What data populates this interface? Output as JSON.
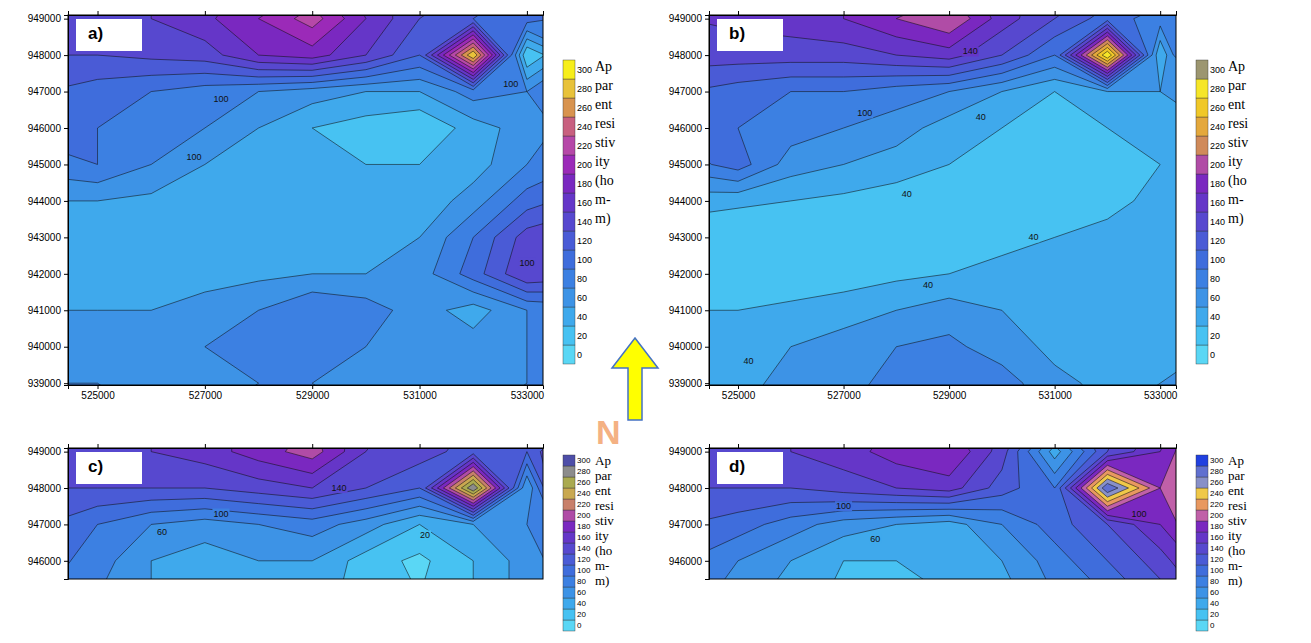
{
  "chart_data": [
    {
      "type": "contour",
      "label": "a)",
      "colorbar_title": "Apparent resistivity (hom-m)",
      "xlim": [
        524450,
        533300
      ],
      "ylim": [
        938950,
        949100
      ],
      "xticks": [
        525000,
        527000,
        529000,
        531000,
        533000
      ],
      "yticks": [
        939000,
        940000,
        941000,
        942000,
        943000,
        944000,
        945000,
        946000,
        947000,
        948000,
        949000
      ],
      "levels": [
        0,
        20,
        40,
        60,
        80,
        100,
        120,
        140,
        160,
        180,
        200,
        220,
        240,
        260,
        280,
        300
      ],
      "colors": [
        "#5ad7f5",
        "#47c2f2",
        "#3fa9ec",
        "#3d93e6",
        "#3c80e2",
        "#3f6ddc",
        "#4a5bd6",
        "#5748cf",
        "#6536c8",
        "#7a28c0",
        "#9b2ab8",
        "#b648a8",
        "#c8607f",
        "#d8934e",
        "#e8c23a",
        "#f7ee1a"
      ],
      "grid_x": [
        524000,
        525000,
        526000,
        527000,
        528000,
        529000,
        530000,
        531000,
        532000,
        533000,
        534000
      ],
      "grid_y": [
        950000,
        949000,
        948000,
        947000,
        946000,
        945000,
        944000,
        943000,
        942000,
        941000,
        940000,
        939000,
        938000
      ],
      "z": [
        [
          150,
          155,
          160,
          170,
          185,
          200,
          170,
          150,
          140,
          120,
          100
        ],
        [
          150,
          150,
          160,
          175,
          200,
          230,
          180,
          140,
          120,
          110,
          90
        ],
        [
          140,
          140,
          145,
          150,
          180,
          190,
          160,
          120,
          300,
          20,
          80
        ],
        [
          120,
          110,
          100,
          90,
          80,
          70,
          60,
          60,
          90,
          80,
          100
        ],
        [
          110,
          100,
          90,
          80,
          60,
          40,
          30,
          20,
          50,
          70,
          90
        ],
        [
          90,
          100,
          80,
          60,
          50,
          40,
          40,
          40,
          50,
          80,
          100
        ],
        [
          60,
          60,
          55,
          50,
          40,
          40,
          40,
          45,
          70,
          110,
          130
        ],
        [
          50,
          45,
          45,
          40,
          40,
          40,
          50,
          60,
          100,
          150,
          160
        ],
        [
          50,
          50,
          50,
          50,
          55,
          60,
          60,
          70,
          110,
          160,
          150
        ],
        [
          60,
          60,
          60,
          70,
          80,
          100,
          90,
          70,
          50,
          80,
          90
        ],
        [
          70,
          70,
          70,
          80,
          90,
          90,
          80,
          70,
          70,
          80,
          90
        ],
        [
          80,
          80,
          75,
          75,
          80,
          80,
          75,
          70,
          75,
          80,
          90
        ],
        [
          85,
          85,
          80,
          80,
          85,
          85,
          80,
          75,
          80,
          85,
          90
        ]
      ],
      "annotations": [
        {
          "label": "100",
          "x": 527300,
          "y": 946800
        },
        {
          "label": "100",
          "x": 526800,
          "y": 945200
        },
        {
          "label": "100",
          "x": 532700,
          "y": 947200
        },
        {
          "label": "100",
          "x": 533000,
          "y": 942300
        }
      ]
    },
    {
      "type": "contour",
      "label": "b)",
      "colorbar_title": "Apparent resistivity (hom-m)",
      "xlim": [
        524450,
        533300
      ],
      "ylim": [
        938950,
        949100
      ],
      "xticks": [
        525000,
        527000,
        529000,
        531000,
        533000
      ],
      "yticks": [
        939000,
        940000,
        941000,
        942000,
        943000,
        944000,
        945000,
        946000,
        947000,
        948000,
        949000
      ],
      "levels": [
        0,
        20,
        40,
        60,
        80,
        100,
        120,
        140,
        160,
        180,
        200,
        220,
        240,
        260,
        280,
        300
      ],
      "colors": [
        "#5ad7f5",
        "#47c2f2",
        "#3fa9ec",
        "#3d93e6",
        "#3c80e2",
        "#3f6ddc",
        "#4a5bd6",
        "#5748cf",
        "#6536c8",
        "#7a28c0",
        "#b04ca6",
        "#d08a5a",
        "#e4a83c",
        "#f0c828",
        "#f6e628",
        "#9c9670"
      ],
      "grid_x": [
        524000,
        525000,
        526000,
        527000,
        528000,
        529000,
        530000,
        531000,
        532000,
        533000,
        534000
      ],
      "grid_y": [
        950000,
        949000,
        948000,
        947000,
        946000,
        945000,
        944000,
        943000,
        942000,
        941000,
        940000,
        939000,
        938000
      ],
      "z": [
        [
          160,
          165,
          170,
          180,
          190,
          190,
          170,
          150,
          140,
          120,
          100
        ],
        [
          160,
          165,
          170,
          180,
          200,
          220,
          170,
          140,
          110,
          90,
          80
        ],
        [
          150,
          150,
          150,
          150,
          160,
          170,
          140,
          100,
          300,
          40,
          200
        ],
        [
          120,
          110,
          100,
          100,
          90,
          80,
          60,
          40,
          60,
          60,
          80
        ],
        [
          110,
          100,
          90,
          80,
          70,
          50,
          40,
          30,
          40,
          50,
          60
        ],
        [
          90,
          110,
          70,
          60,
          50,
          40,
          30,
          20,
          30,
          40,
          50
        ],
        [
          50,
          45,
          40,
          35,
          30,
          25,
          20,
          25,
          35,
          45,
          50
        ],
        [
          25,
          20,
          20,
          20,
          25,
          30,
          35,
          40,
          45,
          50,
          55
        ],
        [
          30,
          25,
          25,
          30,
          35,
          40,
          45,
          45,
          50,
          55,
          55
        ],
        [
          40,
          40,
          45,
          50,
          60,
          70,
          60,
          50,
          45,
          50,
          55
        ],
        [
          45,
          50,
          60,
          70,
          80,
          85,
          70,
          55,
          50,
          55,
          60
        ],
        [
          50,
          55,
          65,
          75,
          85,
          95,
          90,
          65,
          55,
          60,
          65
        ],
        [
          55,
          60,
          70,
          80,
          90,
          100,
          95,
          70,
          60,
          65,
          70
        ]
      ],
      "annotations": [
        {
          "label": "140",
          "x": 529400,
          "y": 948100
        },
        {
          "label": "100",
          "x": 527400,
          "y": 946400
        },
        {
          "label": "40",
          "x": 529600,
          "y": 946300
        },
        {
          "label": "40",
          "x": 528200,
          "y": 944200
        },
        {
          "label": "40",
          "x": 530600,
          "y": 943000
        },
        {
          "label": "40",
          "x": 528600,
          "y": 941700
        },
        {
          "label": "40",
          "x": 525200,
          "y": 939600
        }
      ]
    },
    {
      "type": "contour",
      "label": "c)",
      "colorbar_title": "Apparent resistivity (hom-m)",
      "tick_labels": "y",
      "xlim": [
        524450,
        533300
      ],
      "ylim": [
        945500,
        949100
      ],
      "xticks": [
        525000,
        527000,
        529000,
        531000,
        533000
      ],
      "yticks": [
        946000,
        947000,
        948000,
        949000
      ],
      "levels": [
        0,
        20,
        40,
        60,
        80,
        100,
        120,
        140,
        160,
        180,
        200,
        220,
        240,
        260,
        280,
        300
      ],
      "colors": [
        "#5ad7f5",
        "#47c2f2",
        "#3fa9ec",
        "#3d93e6",
        "#3c80e2",
        "#3f6ddc",
        "#4a5bd6",
        "#5748cf",
        "#6536c8",
        "#7a28c0",
        "#b04ca6",
        "#c8806a",
        "#c9a850",
        "#aaaa50",
        "#8c8c8c",
        "#4e4ea8"
      ],
      "grid_x": [
        524000,
        525000,
        526000,
        527000,
        528000,
        529000,
        530000,
        531000,
        532000,
        533000,
        534000
      ],
      "grid_y": [
        950000,
        949000,
        948000,
        947000,
        946000,
        945000
      ],
      "z": [
        [
          150,
          155,
          160,
          170,
          190,
          200,
          170,
          150,
          140,
          130,
          140
        ],
        [
          150,
          150,
          160,
          170,
          190,
          210,
          160,
          150,
          130,
          120,
          200
        ],
        [
          140,
          140,
          140,
          140,
          150,
          160,
          140,
          120,
          300,
          60,
          250
        ],
        [
          120,
          100,
          80,
          70,
          80,
          90,
          70,
          40,
          60,
          80,
          120
        ],
        [
          110,
          90,
          60,
          50,
          60,
          60,
          30,
          15,
          40,
          70,
          100
        ],
        [
          100,
          80,
          60,
          50,
          55,
          50,
          30,
          20,
          40,
          70,
          90
        ]
      ],
      "annotations": [
        {
          "label": "140",
          "x": 529500,
          "y": 948000
        },
        {
          "label": "100",
          "x": 527300,
          "y": 947300
        },
        {
          "label": "60",
          "x": 526200,
          "y": 946800
        },
        {
          "label": "20",
          "x": 531100,
          "y": 946700
        }
      ]
    },
    {
      "type": "contour",
      "label": "d)",
      "colorbar_title": "Apparent resistivity (hom-m)",
      "tick_labels": "y",
      "xlim": [
        524450,
        533300
      ],
      "ylim": [
        945500,
        949100
      ],
      "xticks": [
        525000,
        527000,
        529000,
        531000,
        533000
      ],
      "yticks": [
        946000,
        947000,
        948000,
        949000
      ],
      "levels": [
        0,
        20,
        40,
        60,
        80,
        100,
        120,
        140,
        160,
        180,
        200,
        220,
        240,
        260,
        280,
        300
      ],
      "colors": [
        "#5ad7f5",
        "#47c2f2",
        "#3fa9ec",
        "#3d93e6",
        "#3c80e2",
        "#3f6ddc",
        "#4a5bd6",
        "#5748cf",
        "#6536c8",
        "#7a28c0",
        "#c060a8",
        "#e89860",
        "#f0c848",
        "#8890c8",
        "#6070d0",
        "#2040e0"
      ],
      "grid_x": [
        524000,
        525000,
        526000,
        527000,
        528000,
        529000,
        530000,
        531000,
        532000,
        533000,
        534000
      ],
      "grid_y": [
        950000,
        949000,
        948000,
        947000,
        946000,
        945000
      ],
      "z": [
        [
          150,
          150,
          160,
          170,
          180,
          180,
          160,
          110,
          130,
          160,
          220
        ],
        [
          150,
          150,
          160,
          170,
          190,
          200,
          150,
          50,
          140,
          180,
          250
        ],
        [
          140,
          140,
          140,
          150,
          160,
          170,
          130,
          100,
          300,
          200,
          260
        ],
        [
          120,
          110,
          90,
          70,
          60,
          50,
          80,
          110,
          140,
          180,
          240
        ],
        [
          100,
          80,
          60,
          40,
          40,
          40,
          60,
          90,
          120,
          150,
          200
        ],
        [
          90,
          70,
          50,
          35,
          35,
          40,
          50,
          80,
          100,
          130,
          170
        ]
      ],
      "annotations": [
        {
          "label": "100",
          "x": 527000,
          "y": 947500
        },
        {
          "label": "60",
          "x": 527600,
          "y": 946600
        },
        {
          "label": "100",
          "x": 532600,
          "y": 947300
        }
      ]
    }
  ],
  "north_arrow": {
    "label": "N"
  }
}
